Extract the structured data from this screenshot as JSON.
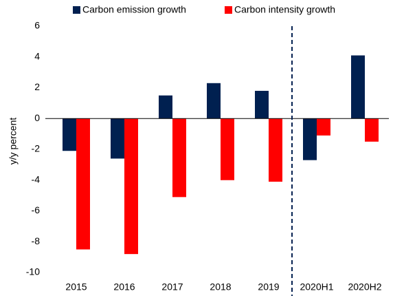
{
  "chart_data": {
    "type": "bar",
    "y_label": "y/y percent",
    "categories": [
      "2015",
      "2016",
      "2017",
      "2018",
      "2019",
      "2020H1",
      "2020H2"
    ],
    "series": [
      {
        "name": "Carbon emission growth",
        "color": "#002050",
        "values": [
          -2.1,
          -2.6,
          1.5,
          2.3,
          1.8,
          -2.7,
          4.1
        ]
      },
      {
        "name": "Carbon intensity growth",
        "color": "#ff0000",
        "values": [
          -8.5,
          -8.8,
          -5.1,
          -4.0,
          -4.1,
          -1.1,
          -1.5
        ]
      }
    ],
    "ylim": [
      -10,
      6
    ],
    "yticks": [
      -10,
      -8,
      -6,
      -4,
      -2,
      0,
      2,
      4,
      6
    ],
    "grid": false,
    "legend": "top"
  }
}
